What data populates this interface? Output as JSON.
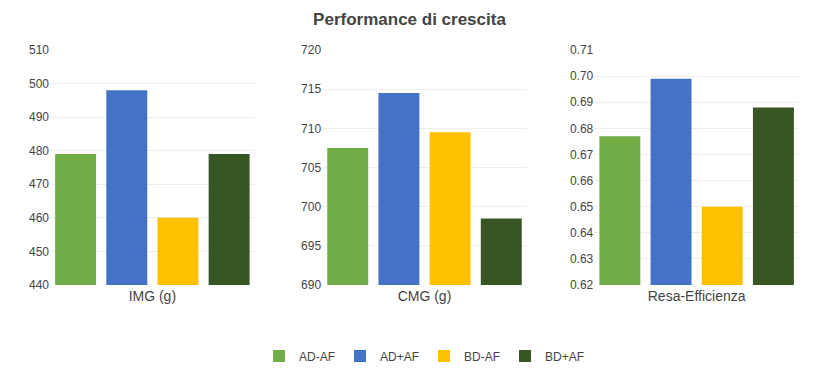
{
  "chart_data": [
    {
      "type": "bar",
      "title": "Performance di crescita",
      "xlabel": "IMG (g)",
      "categories": [
        "AD-AF",
        "AD+AF",
        "BD-AF",
        "BD+AF"
      ],
      "values": [
        479,
        498,
        460,
        479
      ],
      "colors": [
        "#70AD47",
        "#4472C4",
        "#FFC000",
        "#375623"
      ],
      "ylim": [
        440,
        510
      ],
      "yticks": [
        440,
        450,
        460,
        470,
        480,
        490,
        500,
        510
      ],
      "grid": true,
      "tick_labels": "y",
      "legend": "bottom"
    },
    {
      "type": "bar",
      "xlabel": "CMG (g)",
      "categories": [
        "AD-AF",
        "AD+AF",
        "BD-AF",
        "BD+AF"
      ],
      "values": [
        707.5,
        714.5,
        709.5,
        698.5
      ],
      "colors": [
        "#70AD47",
        "#4472C4",
        "#FFC000",
        "#375623"
      ],
      "ylim": [
        690,
        720
      ],
      "yticks": [
        690,
        695,
        700,
        705,
        710,
        715,
        720
      ],
      "grid": true,
      "tick_labels": "y"
    },
    {
      "type": "bar",
      "xlabel": "Resa-Efficienza",
      "categories": [
        "AD-AF",
        "AD+AF",
        "BD-AF",
        "BD+AF"
      ],
      "values": [
        0.677,
        0.699,
        0.65,
        0.688
      ],
      "colors": [
        "#70AD47",
        "#4472C4",
        "#FFC000",
        "#375623"
      ],
      "ylim": [
        0.62,
        0.71
      ],
      "yticks": [
        0.62,
        0.63,
        0.64,
        0.65,
        0.66,
        0.67,
        0.68,
        0.69,
        {
          "value": 0.7,
          "label": "0.70"
        },
        0.71
      ],
      "grid": true,
      "tick_labels": "y"
    }
  ]
}
